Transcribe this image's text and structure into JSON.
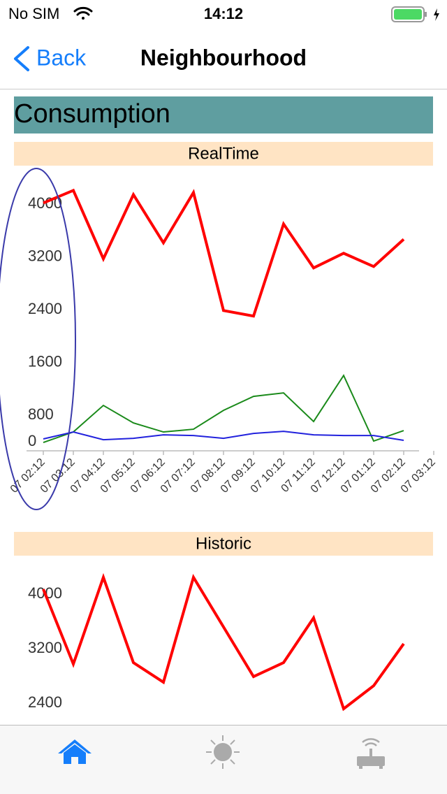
{
  "status_bar": {
    "carrier": "No SIM",
    "time": "14:12"
  },
  "nav": {
    "back": "Back",
    "title": "Neighbourhood"
  },
  "section": {
    "title": "Consumption"
  },
  "chart_data": [
    {
      "type": "line",
      "title": "RealTime",
      "categories": [
        "07 02:12",
        "07 03:12",
        "07 04:12",
        "07 05:12",
        "07 06:12",
        "07 07:12",
        "07 08:12",
        "07 09:12",
        "07 10:12",
        "07 11:12",
        "07 12:12",
        "07 01:12",
        "07 02:12",
        "07 03:12"
      ],
      "series": [
        {
          "color": "#ff0000",
          "values": [
            4021,
            4212,
            3174,
            4148,
            3417,
            4180,
            2389,
            2305,
            3703,
            3036,
            3258,
            3057,
            3470,
            null
          ]
        },
        {
          "color": "#1a8a1a",
          "values": [
            387,
            546,
            949,
            683,
            546,
            588,
            874,
            1086,
            1139,
            705,
            1404,
            408,
            567,
            null
          ]
        },
        {
          "color": "#2222dd",
          "values": [
            440,
            546,
            429,
            450,
            503,
            492,
            450,
            524,
            556,
            503,
            492,
            492,
            419,
            null
          ]
        }
      ],
      "ylim": [
        260,
        4450
      ],
      "yticks": [
        0,
        800,
        1600,
        2400,
        3200,
        4000
      ],
      "grid": false
    },
    {
      "type": "line",
      "title": "Historic",
      "series": [
        {
          "color": "#ff0000",
          "values": [
            4072,
            2974,
            4246,
            2995,
            2708,
            4246,
            3518,
            2790,
            2995,
            3651,
            2318,
            2656,
            3272
          ]
        }
      ],
      "ylim": [
        1950,
        4410
      ],
      "yticks": [
        2400,
        3200,
        4000
      ],
      "grid": false
    }
  ]
}
